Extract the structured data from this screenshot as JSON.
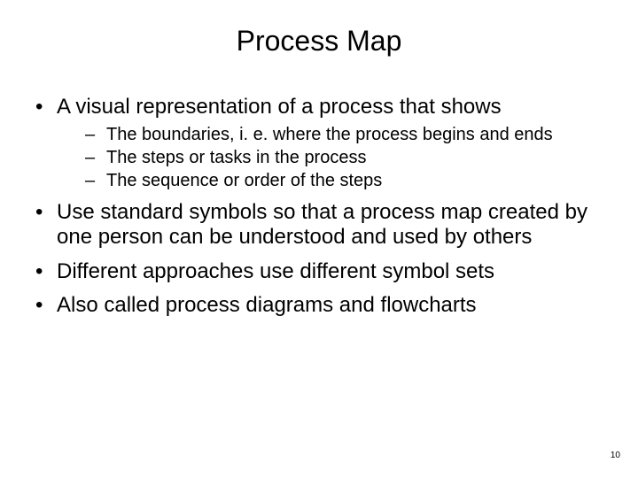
{
  "slide": {
    "title": "Process Map",
    "bullets": [
      {
        "text": "A visual representation of a process that shows",
        "sub": [
          "The boundaries, i. e. where the process begins and ends",
          "The steps or tasks in the process",
          "The sequence or order of the steps"
        ]
      },
      {
        "text": "Use standard symbols so that a process map created by one person can be understood and used by others",
        "sub": []
      },
      {
        "text": "Different approaches use different symbol sets",
        "sub": []
      },
      {
        "text": "Also called process diagrams and flowcharts",
        "sub": []
      }
    ],
    "page_number": "10"
  },
  "style": {
    "background_color": "#ffffff",
    "text_color": "#000000",
    "title_fontsize": 32,
    "level1_fontsize": 24,
    "level2_fontsize": 20,
    "pagenum_fontsize": 10,
    "font_family": "Arial"
  }
}
